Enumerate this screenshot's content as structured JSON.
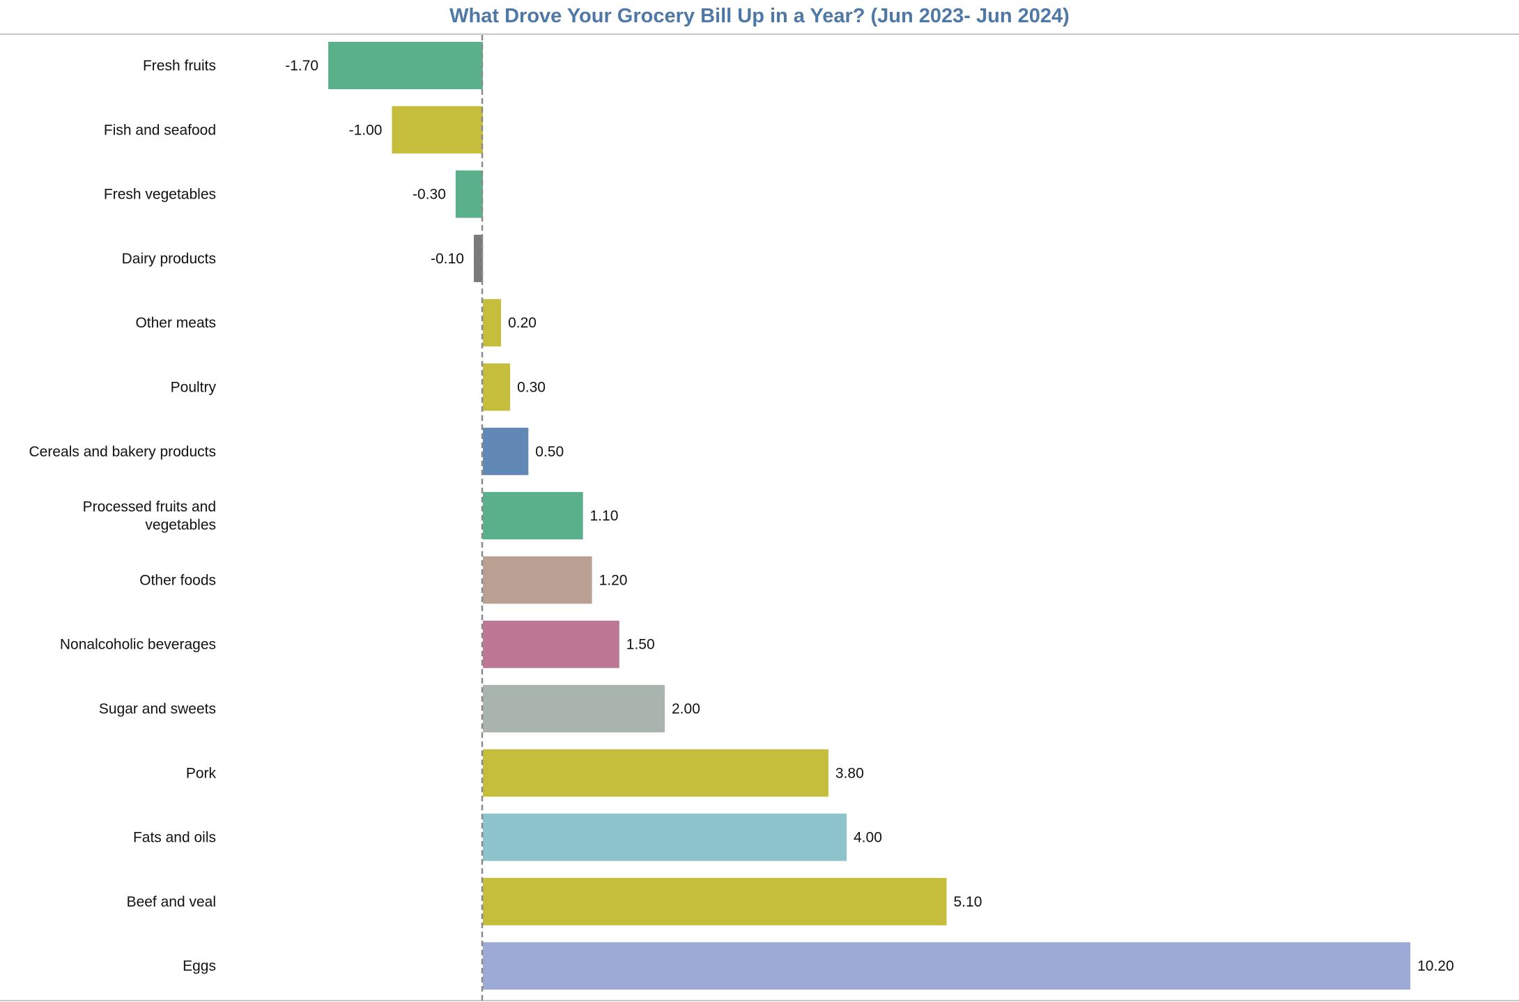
{
  "chart_data": {
    "type": "bar",
    "orientation": "horizontal",
    "title": "What Drove Your Grocery Bill Up in a Year? (Jun 2023- Jun 2024)",
    "categories": [
      "Fresh fruits",
      "Fish and seafood",
      "Fresh vegetables",
      "Dairy products",
      "Other meats",
      "Poultry",
      "Cereals and bakery products",
      "Processed fruits and vegetables",
      "Other foods",
      "Nonalcoholic beverages",
      "Sugar and sweets",
      "Pork",
      "Fats and oils",
      "Beef and veal",
      "Eggs"
    ],
    "values": [
      -1.7,
      -1.0,
      -0.3,
      -0.1,
      0.2,
      0.3,
      0.5,
      1.1,
      1.2,
      1.5,
      2.0,
      3.8,
      4.0,
      5.1,
      10.2
    ],
    "value_labels": [
      "-1.70",
      "-1.00",
      "-0.30",
      "-0.10",
      "0.20",
      "0.30",
      "0.50",
      "1.10",
      "1.20",
      "1.50",
      "2.00",
      "3.80",
      "4.00",
      "5.10",
      "10.20"
    ],
    "colors": [
      "#59b08a",
      "#c5bd3c",
      "#59b08a",
      "#7a7a7a",
      "#c5bd3c",
      "#c5bd3c",
      "#6288b6",
      "#59b08a",
      "#baa093",
      "#bd7694",
      "#a9b4ae",
      "#c5bd3c",
      "#8dc3cb",
      "#c5bd3c",
      "#9eaad6"
    ],
    "xlabel": "",
    "ylabel": "",
    "xlim": [
      -2.0,
      10.2
    ],
    "zero_reference_line": "dashed",
    "grid": false,
    "legend": "none"
  }
}
